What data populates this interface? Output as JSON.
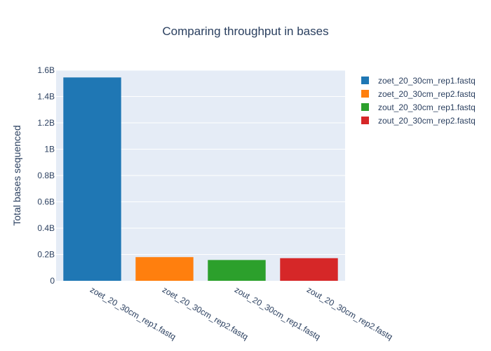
{
  "chart_data": {
    "type": "bar",
    "title": "Comparing throughput in bases",
    "xlabel": "",
    "ylabel": "Total bases sequenced",
    "categories": [
      "zoet_20_30cm_rep1.fastq",
      "zoet_20_30cm_rep2.fastq",
      "zout_20_30cm_rep1.fastq",
      "zout_20_30cm_rep2.fastq"
    ],
    "values": [
      1545000000,
      180000000,
      158000000,
      172000000
    ],
    "colors": [
      "#1f77b4",
      "#ff7f0e",
      "#2ca02c",
      "#d62728"
    ],
    "ylim": [
      0,
      1600000000
    ],
    "yticks": [
      0,
      200000000,
      400000000,
      600000000,
      800000000,
      1000000000,
      1200000000,
      1400000000,
      1600000000
    ],
    "ytick_labels": [
      "0",
      "0.2B",
      "0.4B",
      "0.6B",
      "0.8B",
      "1B",
      "1.2B",
      "1.4B",
      "1.6B"
    ],
    "grid": true,
    "legend": {
      "placement": "top-right",
      "entries": [
        "zoet_20_30cm_rep1.fastq",
        "zoet_20_30cm_rep2.fastq",
        "zout_20_30cm_rep1.fastq",
        "zout_20_30cm_rep2.fastq"
      ]
    }
  }
}
